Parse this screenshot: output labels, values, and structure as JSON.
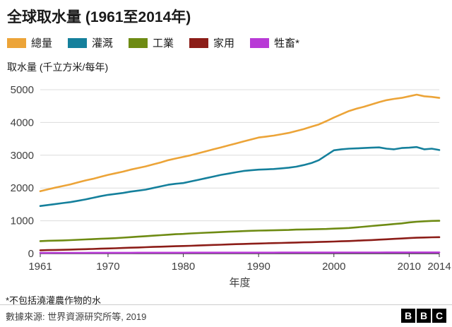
{
  "title": "全球取水量 (1961至2014年)",
  "y_axis_unit": "取水量 (千立方米/每年)",
  "footnote": "*不包括澆灌農作物的水",
  "source": "數據來源: 世界資源研究所等, 2019",
  "brand": {
    "letters": [
      "B",
      "B",
      "C"
    ]
  },
  "chart_data": {
    "type": "line",
    "title": "全球取水量 (1961至2014年)",
    "xlabel": "年度",
    "ylabel": "取水量 (千立方米/每年)",
    "x_range": [
      1961,
      2014
    ],
    "ylim": [
      0,
      5000
    ],
    "y_ticks": [
      0,
      1000,
      2000,
      3000,
      4000,
      5000
    ],
    "x_ticks": [
      1961,
      1970,
      1980,
      1990,
      2000,
      2010,
      2014
    ],
    "grid": "horizontal",
    "legend_position": "top",
    "x": [
      1961,
      1962,
      1963,
      1964,
      1965,
      1966,
      1967,
      1968,
      1969,
      1970,
      1971,
      1972,
      1973,
      1974,
      1975,
      1976,
      1977,
      1978,
      1979,
      1980,
      1981,
      1982,
      1983,
      1984,
      1985,
      1986,
      1987,
      1988,
      1989,
      1990,
      1991,
      1992,
      1993,
      1994,
      1995,
      1996,
      1997,
      1998,
      1999,
      2000,
      2001,
      2002,
      2003,
      2004,
      2005,
      2006,
      2007,
      2008,
      2009,
      2010,
      2011,
      2012,
      2013,
      2014
    ],
    "series": [
      {
        "id": "total",
        "name": "總量",
        "color": "#eca438",
        "values": [
          1900,
          1960,
          2010,
          2060,
          2110,
          2170,
          2230,
          2280,
          2340,
          2400,
          2450,
          2500,
          2560,
          2610,
          2660,
          2720,
          2780,
          2850,
          2900,
          2950,
          3000,
          3060,
          3120,
          3180,
          3240,
          3300,
          3360,
          3420,
          3480,
          3540,
          3570,
          3600,
          3640,
          3680,
          3740,
          3800,
          3870,
          3940,
          4040,
          4150,
          4250,
          4350,
          4420,
          4480,
          4550,
          4620,
          4680,
          4720,
          4750,
          4800,
          4850,
          4800,
          4780,
          4750
        ]
      },
      {
        "id": "irrigation",
        "name": "灌溉",
        "color": "#15809c",
        "values": [
          1450,
          1480,
          1510,
          1540,
          1570,
          1610,
          1650,
          1700,
          1750,
          1790,
          1820,
          1850,
          1890,
          1920,
          1950,
          2000,
          2050,
          2100,
          2130,
          2150,
          2200,
          2250,
          2300,
          2350,
          2400,
          2440,
          2480,
          2520,
          2540,
          2560,
          2570,
          2580,
          2600,
          2620,
          2650,
          2700,
          2760,
          2850,
          3000,
          3150,
          3180,
          3200,
          3210,
          3220,
          3230,
          3240,
          3200,
          3180,
          3220,
          3230,
          3250,
          3180,
          3200,
          3160
        ]
      },
      {
        "id": "industry",
        "name": "工業",
        "color": "#6e8b13",
        "values": [
          380,
          390,
          395,
          400,
          410,
          420,
          430,
          440,
          450,
          460,
          470,
          485,
          500,
          515,
          530,
          545,
          560,
          575,
          590,
          600,
          615,
          625,
          635,
          645,
          655,
          665,
          675,
          685,
          695,
          700,
          705,
          710,
          715,
          720,
          730,
          735,
          740,
          745,
          750,
          760,
          770,
          780,
          800,
          820,
          840,
          860,
          880,
          900,
          920,
          950,
          970,
          985,
          995,
          1000
        ]
      },
      {
        "id": "domestic",
        "name": "家用",
        "color": "#8c1d18",
        "values": [
          100,
          105,
          110,
          115,
          120,
          127,
          134,
          141,
          148,
          155,
          162,
          170,
          178,
          186,
          194,
          202,
          210,
          218,
          224,
          230,
          238,
          246,
          254,
          262,
          270,
          278,
          286,
          294,
          300,
          306,
          312,
          318,
          324,
          330,
          336,
          342,
          348,
          354,
          360,
          366,
          374,
          382,
          392,
          402,
          412,
          424,
          436,
          448,
          460,
          472,
          482,
          490,
          495,
          500
        ]
      },
      {
        "id": "livestock",
        "name": "牲畜*",
        "color": "#b83ad6",
        "values": [
          20,
          20,
          21,
          21,
          22,
          22,
          22,
          23,
          23,
          23,
          24,
          24,
          24,
          25,
          25,
          25,
          25,
          26,
          26,
          26,
          27,
          27,
          27,
          27,
          28,
          28,
          28,
          28,
          29,
          29,
          29,
          29,
          30,
          30,
          30,
          30,
          31,
          31,
          31,
          31,
          32,
          32,
          32,
          33,
          33,
          33,
          34,
          34,
          34,
          34,
          35,
          35,
          35,
          35
        ]
      }
    ]
  }
}
